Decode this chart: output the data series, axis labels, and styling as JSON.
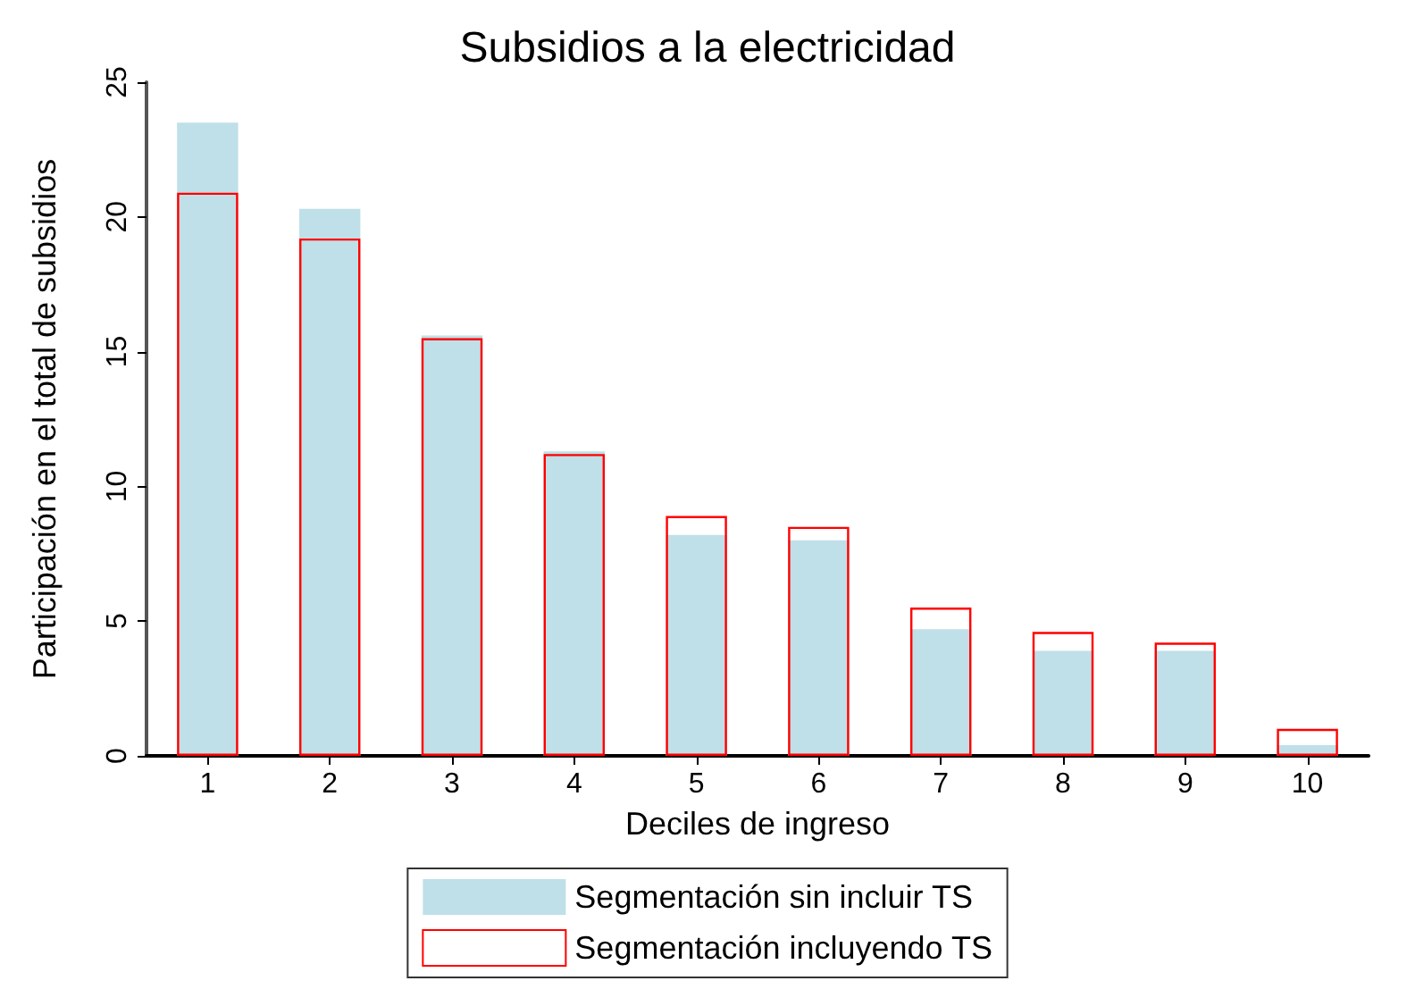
{
  "chart_data": {
    "type": "bar",
    "title": "Subsidios a la electricidad",
    "xlabel": "Deciles de ingreso",
    "ylabel": "Participación en el total de subsidios",
    "categories": [
      "1",
      "2",
      "3",
      "4",
      "5",
      "6",
      "7",
      "8",
      "9",
      "10"
    ],
    "series": [
      {
        "name": "Segmentación sin incluir TS",
        "color": "#bfe0e8",
        "values": [
          23.5,
          20.3,
          15.6,
          11.3,
          8.2,
          8.0,
          4.7,
          3.9,
          3.9,
          0.4
        ]
      },
      {
        "name": "Segmentación incluyendo TS",
        "color": "#ff0000",
        "values": [
          20.9,
          19.2,
          15.5,
          11.2,
          8.9,
          8.5,
          5.5,
          4.6,
          4.2,
          1.0
        ]
      }
    ],
    "ylim": [
      0,
      25
    ],
    "yticks": [
      0,
      5,
      10,
      15,
      20,
      25
    ],
    "grid": false,
    "legend": "bottom"
  }
}
